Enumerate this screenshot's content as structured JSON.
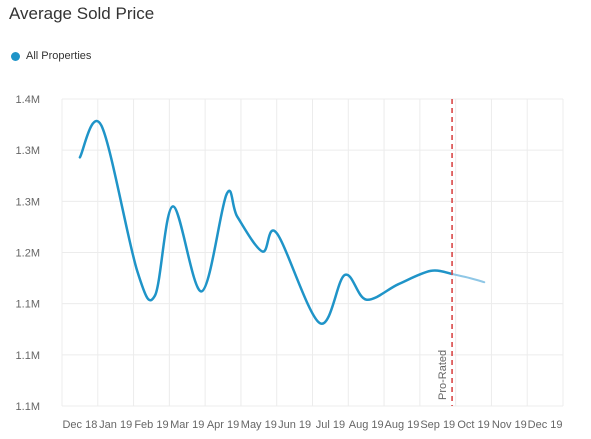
{
  "chart_data": {
    "type": "line",
    "title": "Average Sold Price",
    "legend_position": "top-left",
    "grid": true,
    "y_ticks": [
      "1.4M",
      "1.3M",
      "1.3M",
      "1.2M",
      "1.1M",
      "1.1M",
      "1.1M"
    ],
    "y_tick_values": [
      1400000,
      1350000,
      1300000,
      1250000,
      1200000,
      1150000,
      1100000
    ],
    "ylim": [
      1100000,
      1400000
    ],
    "categories": [
      "Dec 18",
      "Jan 19",
      "Feb 19",
      "Mar 19",
      "Apr 19",
      "May 19",
      "Jun 19",
      "Jul 19",
      "Aug 19",
      "Aug 19",
      "Sep 19",
      "Oct 19",
      "Nov 19",
      "Dec 19"
    ],
    "series": [
      {
        "name": "All Properties",
        "color": "#1f94c8",
        "points": [
          [
            0.0,
            1343000
          ],
          [
            0.6,
            1374000
          ],
          [
            1.6,
            1232000
          ],
          [
            2.1,
            1208000
          ],
          [
            2.6,
            1295000
          ],
          [
            3.4,
            1212000
          ],
          [
            4.1,
            1307000
          ],
          [
            4.4,
            1285000
          ],
          [
            5.1,
            1251000
          ],
          [
            5.5,
            1269000
          ],
          [
            6.7,
            1181000
          ],
          [
            7.4,
            1228000
          ],
          [
            8.0,
            1204000
          ],
          [
            8.9,
            1219000
          ],
          [
            9.8,
            1232000
          ],
          [
            10.4,
            1229000
          ]
        ]
      },
      {
        "name": "Pro-Rated",
        "color": "#8fc7e6",
        "points": [
          [
            10.4,
            1229000
          ],
          [
            10.9,
            1225000
          ],
          [
            11.3,
            1221000
          ]
        ]
      }
    ],
    "marker_line": {
      "x": 10.4,
      "label": "Pro-Rated",
      "color": "#d63c3c"
    }
  }
}
